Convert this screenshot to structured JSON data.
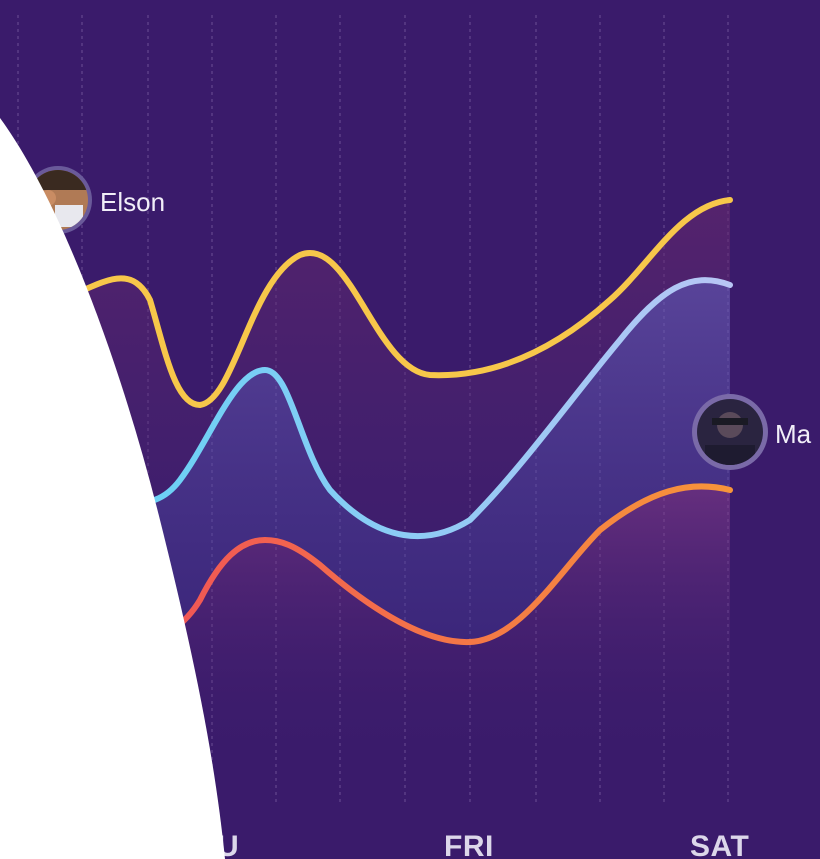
{
  "chart_data": {
    "type": "line",
    "x": [
      "THU",
      "FRI",
      "SAT"
    ],
    "visible_x_labels": [
      "U",
      "FRI",
      "SAT"
    ],
    "grid": "vertical-dashed",
    "series": [
      {
        "name": "Elson",
        "color": "#f7c74a",
        "values_note": "",
        "points": [
          [
            0.0,
            0.66
          ],
          [
            0.5,
            0.54
          ],
          [
            1.0,
            0.57
          ],
          [
            2.0,
            0.73
          ]
        ]
      },
      {
        "name": "Ma",
        "color": "#6fd2f0",
        "points": [
          [
            0.0,
            0.5
          ],
          [
            0.5,
            0.41
          ],
          [
            1.0,
            0.3
          ],
          [
            2.0,
            0.58
          ]
        ]
      },
      {
        "name": "",
        "color": "#f06a4a",
        "points": [
          [
            0.0,
            0.22
          ],
          [
            0.5,
            0.3
          ],
          [
            1.0,
            0.14
          ],
          [
            2.0,
            0.37
          ]
        ]
      }
    ]
  },
  "people": [
    {
      "name": "Elson",
      "avatar_icon": "avatar-photo"
    },
    {
      "name": "Ma",
      "avatar_icon": "avatar-photo"
    }
  ],
  "colors": {
    "background": "#3a1b6b",
    "grid": "#5a3c86",
    "cutout": "#ffffff"
  }
}
